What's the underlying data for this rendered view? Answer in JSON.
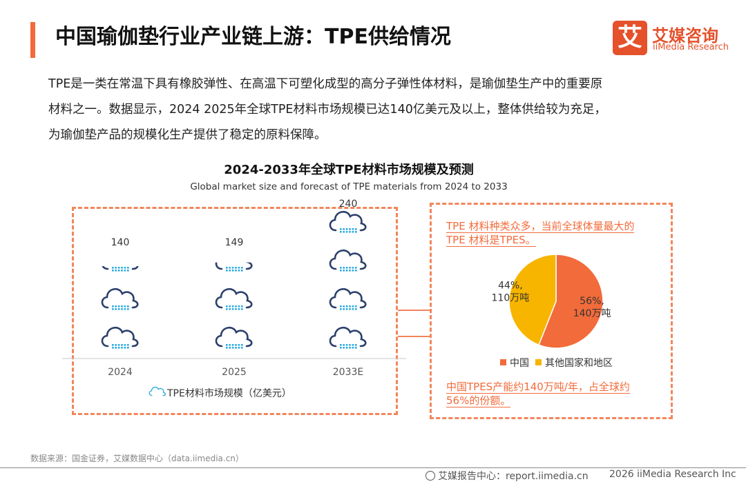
{
  "header": {
    "title": "中国瑜伽垫行业产业链上游：TPE供给情况",
    "logo_mark": "艾",
    "logo_cn": "艾媒咨询",
    "logo_en": "iiMedia Research"
  },
  "intro": {
    "lines": [
      "TPE是一类在常温下具有橡胶弹性、在高温下可塑化成型的高分子弹性体材料，是瑜伽垫生产中的重要原",
      "材料之一。数据显示，2024  2025年全球TPE材料市场规模已达140亿美元及以上，整体供给较为充足，",
      "为瑜伽垫产品的规模化生产提供了稳定的原料保障。"
    ]
  },
  "chart": {
    "title": "2024-2033年全球TPE材料市场规模及预测",
    "subtitle": "Global market size and forecast of TPE materials from 2024 to 2033",
    "legend_label": "TPE材料市场规模（亿美元）"
  },
  "chart_data": [
    {
      "type": "bar",
      "categories": [
        "2024",
        "2025",
        "2033E"
      ],
      "series": [
        {
          "name": "TPE材料市场规模（亿美元）",
          "values": [
            140,
            149,
            240
          ]
        }
      ],
      "title": "2024-2033年全球TPE材料市场规模及预测",
      "subtitle": "Global market size and forecast of TPE materials from 2024 to 2033",
      "data_labels": [
        "140",
        "149",
        "240"
      ],
      "units_per_icon": 60,
      "icon": "cloud-icon",
      "color": "#2a3f6b",
      "accent_color": "#29a9e0"
    },
    {
      "type": "pie",
      "labels": [
        "中国",
        "其他国家和地区"
      ],
      "values": [
        56,
        44
      ],
      "data_labels": [
        [
          "56%,",
          "140万吨"
        ],
        [
          "44%,",
          "110万吨"
        ]
      ],
      "colors": [
        "#f26b3a",
        "#f7b500"
      ],
      "legend_position": "bottom"
    }
  ],
  "callouts": {
    "top": [
      "TPE 材料种类众多，当前全球体量最大的",
      "TPE 材料是TPES。"
    ],
    "bottom": [
      "中国TPES产能约140万吨/年，占全球约",
      "56%的份额。"
    ]
  },
  "footer": {
    "source": "数据来源：国金证券，艾媒数据中心（data.iimedia.cn）",
    "report": "艾媒报告中心：report.iimedia.cn",
    "copyright": "2026  iiMedia Research  Inc"
  },
  "colors": {
    "accent": "#f26b3a",
    "brand": "#e5512b",
    "dash": "#f2855a"
  }
}
